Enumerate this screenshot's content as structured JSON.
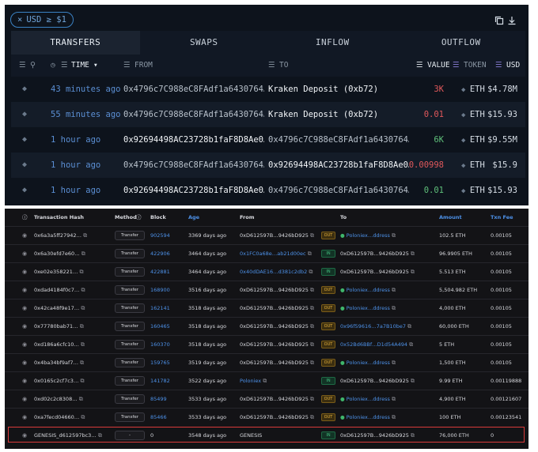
{
  "top": {
    "filter_chip": {
      "close": "×",
      "text": "USD ≥ $1"
    },
    "icons": [
      "copy-icon",
      "download-icon"
    ],
    "tabs": [
      {
        "label": "TRANSFERS",
        "active": true
      },
      {
        "label": "SWAPS",
        "active": false
      },
      {
        "label": "INFLOW",
        "active": false
      },
      {
        "label": "OUTFLOW",
        "active": false
      }
    ],
    "columns": {
      "time": "TIME",
      "from": "FROM",
      "to": "TO",
      "value": "VALUE",
      "token": "TOKEN",
      "usd": "USD"
    },
    "rows": [
      {
        "time": "43 minutes ago",
        "from": "0x4796c7C988eC8FAdf1a6430764…",
        "to": "Kraken Deposit (0xb72)",
        "value": "3K",
        "value_color": "red",
        "token": "ETH",
        "usd": "$4.78M"
      },
      {
        "time": "55 minutes ago",
        "from": "0x4796c7C988eC8FAdf1a6430764…",
        "to": "Kraken Deposit (0xb72)",
        "value": "0.01",
        "value_color": "red",
        "token": "ETH",
        "usd": "$15.93"
      },
      {
        "time": "1 hour ago",
        "from": "0x92694498AC23728b1faF8D8Ae0…",
        "to": "0x4796c7C988eC8FAdf1a6430764…",
        "value": "6K",
        "value_color": "green",
        "token": "ETH",
        "usd": "$9.55M"
      },
      {
        "time": "1 hour ago",
        "from": "0x4796c7C988eC8FAdf1a6430764…",
        "to": "0x92694498AC23728b1faF8D8Ae0…",
        "value": "0.00998",
        "value_color": "red",
        "token": "ETH",
        "usd": "$15.9"
      },
      {
        "time": "1 hour ago",
        "from": "0x92694498AC23728b1faF8D8Ae0…",
        "to": "0x4796c7C988eC8FAdf1a6430764…",
        "value": "0.01",
        "value_color": "green",
        "token": "ETH",
        "usd": "$15.93"
      }
    ]
  },
  "bottom": {
    "columns": {
      "hash": "Transaction Hash",
      "method": "Method",
      "block": "Block",
      "age": "Age",
      "from": "From",
      "to": "To",
      "amount": "Amount",
      "fee": "Txn Fee"
    },
    "rows": [
      {
        "hash": "0x6a3a5ff27942…",
        "method": "Transfer",
        "block": "902594",
        "age": "3369 days ago",
        "from": "0xD612597B…9426bD925",
        "dir": "OUT",
        "to": "Poloniex…ddress",
        "amount": "102.5 ETH",
        "fee": "0.00105"
      },
      {
        "hash": "0x6a30efd7e60…",
        "method": "Transfer",
        "block": "422906",
        "age": "3464 days ago",
        "from": "0x1FC0a68e…ab21d00ec",
        "dir": "IN",
        "to": "0xD612597B…9426bD925",
        "amount": "96.9905 ETH",
        "fee": "0.00105"
      },
      {
        "hash": "0xe02e358221…",
        "method": "Transfer",
        "block": "422881",
        "age": "3464 days ago",
        "from": "0x40dDAE16…d381c2db2",
        "dir": "IN",
        "to": "0xD612597B…9426bD925",
        "amount": "5.513 ETH",
        "fee": "0.00105"
      },
      {
        "hash": "0xdad4184f0c7…",
        "method": "Transfer",
        "block": "168900",
        "age": "3516 days ago",
        "from": "0xD612597B…9426bD925",
        "dir": "OUT",
        "to": "Poloniex…ddress",
        "amount": "5,504.982 ETH",
        "fee": "0.00105"
      },
      {
        "hash": "0x42ca48f9e17…",
        "method": "Transfer",
        "block": "162141",
        "age": "3518 days ago",
        "from": "0xD612597B…9426bD925",
        "dir": "OUT",
        "to": "Poloniex…ddress",
        "amount": "4,000 ETH",
        "fee": "0.00105"
      },
      {
        "hash": "0x77780bab71…",
        "method": "Transfer",
        "block": "160465",
        "age": "3518 days ago",
        "from": "0xD612597B…9426bD925",
        "dir": "OUT",
        "to": "0x96f59616…7a7B10be7",
        "amount": "60,000 ETH",
        "fee": "0.00105"
      },
      {
        "hash": "0xd186a6cfc10…",
        "method": "Transfer",
        "block": "160370",
        "age": "3518 days ago",
        "from": "0xD612597B…9426bD925",
        "dir": "OUT",
        "to": "0x52Bd6BBf…D1d54A494",
        "amount": "5 ETH",
        "fee": "0.00105"
      },
      {
        "hash": "0x4ba34bf9af7…",
        "method": "Transfer",
        "block": "159765",
        "age": "3519 days ago",
        "from": "0xD612597B…9426bD925",
        "dir": "OUT",
        "to": "Poloniex…ddress",
        "amount": "1,500 ETH",
        "fee": "0.00105"
      },
      {
        "hash": "0x0165c2cf7c3…",
        "method": "Transfer",
        "block": "141782",
        "age": "3522 days ago",
        "from": "Poloniex",
        "dir": "IN",
        "to": "0xD612597B…9426bD925",
        "amount": "9.99 ETH",
        "fee": "0.00119888"
      },
      {
        "hash": "0xd02c2c8308…",
        "method": "Transfer",
        "block": "85499",
        "age": "3533 days ago",
        "from": "0xD612597B…9426bD925",
        "dir": "OUT",
        "to": "Poloniex…ddress",
        "amount": "4,900 ETH",
        "fee": "0.00121607"
      },
      {
        "hash": "0xa7fecd04660…",
        "method": "Transfer",
        "block": "85466",
        "age": "3533 days ago",
        "from": "0xD612597B…9426bD925",
        "dir": "OUT",
        "to": "Poloniex…ddress",
        "amount": "100 ETH",
        "fee": "0.00123541"
      },
      {
        "hash": "GENESIS_d612597bc3…",
        "method": "-",
        "block": "0",
        "age": "3548 days ago",
        "from": "GENESIS",
        "dir": "IN",
        "to": "0xD612597B…9426bD925",
        "amount": "76,000 ETH",
        "fee": "0"
      }
    ]
  },
  "colors": {
    "accent_blue": "#4d91e8",
    "out_badge": "#e8b33b",
    "in_badge": "#44c181",
    "highlight": "#d93b3b"
  }
}
